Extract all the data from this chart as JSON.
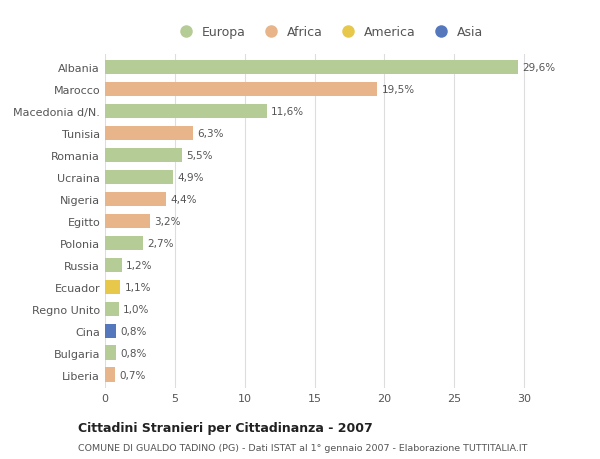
{
  "categories": [
    "Albania",
    "Marocco",
    "Macedonia d/N.",
    "Tunisia",
    "Romania",
    "Ucraina",
    "Nigeria",
    "Egitto",
    "Polonia",
    "Russia",
    "Ecuador",
    "Regno Unito",
    "Cina",
    "Bulgaria",
    "Liberia"
  ],
  "values": [
    29.6,
    19.5,
    11.6,
    6.3,
    5.5,
    4.9,
    4.4,
    3.2,
    2.7,
    1.2,
    1.1,
    1.0,
    0.8,
    0.8,
    0.7
  ],
  "labels": [
    "29,6%",
    "19,5%",
    "11,6%",
    "6,3%",
    "5,5%",
    "4,9%",
    "4,4%",
    "3,2%",
    "2,7%",
    "1,2%",
    "1,1%",
    "1,0%",
    "0,8%",
    "0,8%",
    "0,7%"
  ],
  "continents": [
    "Europa",
    "Africa",
    "Europa",
    "Africa",
    "Europa",
    "Europa",
    "Africa",
    "Africa",
    "Europa",
    "Europa",
    "America",
    "Europa",
    "Asia",
    "Europa",
    "Africa"
  ],
  "colors": {
    "Europa": "#b5cc96",
    "Africa": "#e8b48a",
    "America": "#e8c84a",
    "Asia": "#5577bb"
  },
  "xlim": [
    0,
    32
  ],
  "xticks": [
    0,
    5,
    10,
    15,
    20,
    25,
    30
  ],
  "title": "Cittadini Stranieri per Cittadinanza - 2007",
  "subtitle": "COMUNE DI GUALDO TADINO (PG) - Dati ISTAT al 1° gennaio 2007 - Elaborazione TUTTITALIA.IT",
  "bg_color": "#ffffff",
  "plot_bg_color": "#ffffff",
  "grid_color": "#dddddd",
  "text_color": "#555555",
  "bar_height": 0.65
}
